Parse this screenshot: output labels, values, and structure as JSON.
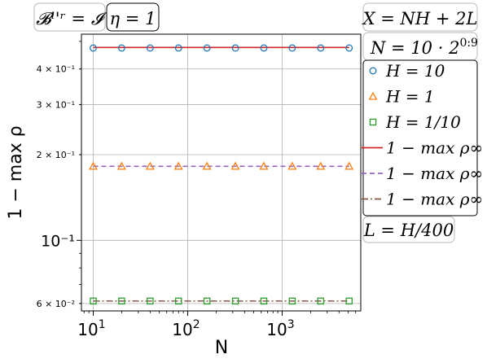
{
  "chart_data": {
    "type": "line",
    "xscale": "log",
    "yscale": "log",
    "xlabel": "N",
    "ylabel": "1 − max ρ",
    "xlim": [
      7.5,
      6800
    ],
    "ylim": [
      0.0565,
      0.53
    ],
    "x": [
      10,
      20,
      40,
      80,
      160,
      320,
      640,
      1280,
      2560,
      5120
    ],
    "x_ticks": [
      {
        "value": 10,
        "base": "10",
        "exp": "1"
      },
      {
        "value": 100,
        "base": "10",
        "exp": "2"
      },
      {
        "value": 1000,
        "base": "10",
        "exp": "3"
      }
    ],
    "y_ticks": [
      {
        "value": 0.4,
        "label": "4 × 10⁻¹",
        "major": false
      },
      {
        "value": 0.3,
        "label": "3 × 10⁻¹",
        "major": false
      },
      {
        "value": 0.2,
        "label": "2 × 10⁻¹",
        "major": false
      },
      {
        "value": 0.1,
        "label": "10⁻¹",
        "major": true
      },
      {
        "value": 0.06,
        "label": "6 × 10⁻²",
        "major": false
      }
    ],
    "grid": true,
    "series": [
      {
        "name": "H = 10",
        "kind": "markers",
        "marker": "circle",
        "color": "#1f77b4",
        "values": [
          0.474,
          0.474,
          0.474,
          0.474,
          0.474,
          0.474,
          0.474,
          0.474,
          0.474,
          0.474
        ]
      },
      {
        "name": "H = 1",
        "kind": "markers",
        "marker": "triangle",
        "color": "#ff7f0e",
        "values": [
          0.182,
          0.182,
          0.182,
          0.182,
          0.182,
          0.182,
          0.182,
          0.182,
          0.182,
          0.182
        ]
      },
      {
        "name": "H = 1/10",
        "kind": "markers",
        "marker": "square",
        "color": "#2ca02c",
        "values": [
          0.0612,
          0.0612,
          0.0612,
          0.0612,
          0.0612,
          0.0612,
          0.0612,
          0.0612,
          0.0612,
          0.0612
        ]
      },
      {
        "name": "1 − max ρ∞",
        "kind": "line",
        "style": "solid",
        "color": "#d62728",
        "values": [
          0.476,
          0.476,
          0.476,
          0.476,
          0.476,
          0.476,
          0.476,
          0.476,
          0.476,
          0.476
        ]
      },
      {
        "name": "1 − max ρ∞",
        "kind": "line",
        "style": "dashed",
        "color": "#9467bd",
        "values": [
          0.182,
          0.182,
          0.182,
          0.182,
          0.182,
          0.182,
          0.182,
          0.182,
          0.182,
          0.182
        ]
      },
      {
        "name": "1 − max ρ∞",
        "kind": "line",
        "style": "dashdot",
        "color": "#8c564b",
        "values": [
          0.0612,
          0.0612,
          0.0612,
          0.0612,
          0.0612,
          0.0612,
          0.0612,
          0.0612,
          0.0612,
          0.0612
        ]
      }
    ],
    "annotations": {
      "top_left_1": "𝓑ˡ'ʳ = 𝓘",
      "top_left_2": "η = 1",
      "right_1": "X = NH + 2L",
      "right_2_main": "N = 10 · 2",
      "right_2_exp": "0:9",
      "right_bottom": "L = H/400"
    }
  }
}
